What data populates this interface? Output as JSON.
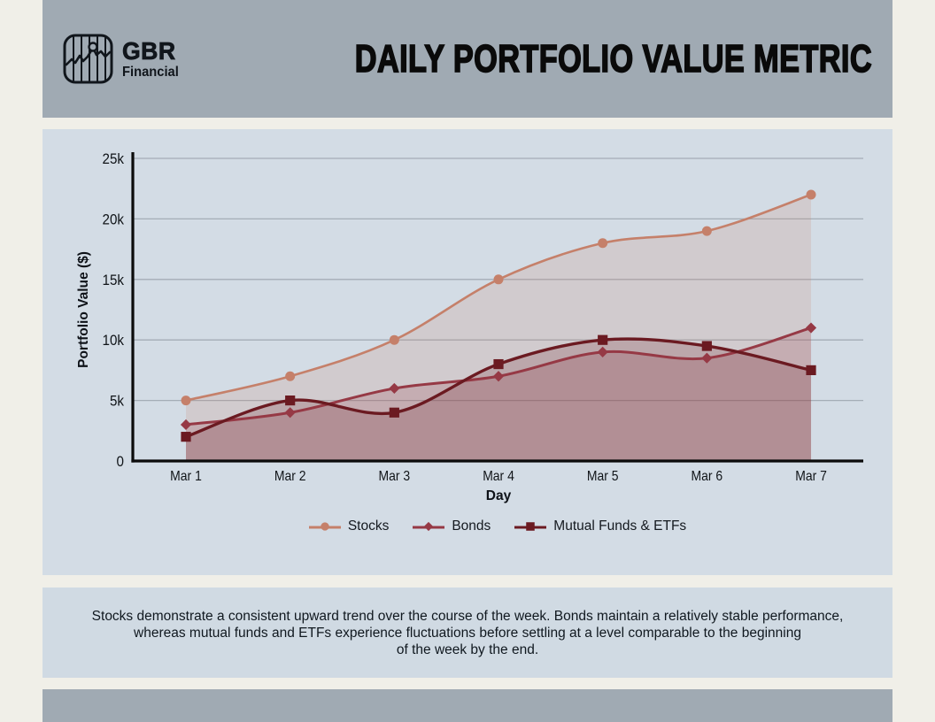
{
  "header": {
    "brand": {
      "name": "GBR",
      "sub": "Financial"
    },
    "title": "DAILY PORTFOLIO VALUE METRIC"
  },
  "chart_data": {
    "type": "area",
    "title": "",
    "xlabel": "Day",
    "ylabel": "Portfolio Value ($)",
    "categories": [
      "Mar 1",
      "Mar 2",
      "Mar 3",
      "Mar 4",
      "Mar 5",
      "Mar 6",
      "Mar 7"
    ],
    "ylim": [
      0,
      25000
    ],
    "yticks": [
      {
        "value": 0,
        "label": "0"
      },
      {
        "value": 5000,
        "label": "5k"
      },
      {
        "value": 10000,
        "label": "10k"
      },
      {
        "value": 15000,
        "label": "15k"
      },
      {
        "value": 20000,
        "label": "20k"
      },
      {
        "value": 25000,
        "label": "25k"
      }
    ],
    "grid": true,
    "legend_position": "bottom",
    "series": [
      {
        "name": "Stocks",
        "marker": "circle",
        "color": "#c5806a",
        "fill_opacity": 0.18,
        "line_width": 2.6,
        "values": [
          5000,
          7000,
          10000,
          15000,
          18000,
          19000,
          22000
        ]
      },
      {
        "name": "Bonds",
        "marker": "diamond",
        "color": "#963945",
        "fill_opacity": 0.2,
        "line_width": 3,
        "values": [
          3000,
          4000,
          6000,
          7000,
          9000,
          8500,
          11000
        ]
      },
      {
        "name": "Mutual Funds & ETFs",
        "marker": "square",
        "color": "#6b1a21",
        "fill_opacity": 0.2,
        "line_width": 3.4,
        "values": [
          2000,
          5000,
          4000,
          8000,
          10000,
          9500,
          7500
        ]
      }
    ]
  },
  "caption": {
    "lines": [
      "Stocks demonstrate a consistent upward trend over the course of the week. Bonds maintain a relatively stable performance,",
      "whereas mutual funds and ETFs experience fluctuations before settling at a level comparable to the beginning",
      "of the week by the end."
    ]
  },
  "colors": {
    "page_bg": "#f0efe8",
    "header_bg": "#a0aab3",
    "panel_bg": "#d3dce5",
    "caption_bg": "#d0dae3",
    "footer_bg": "#a0aab3",
    "grid": "#a4adb6",
    "axis": "#0b0b0b",
    "text": "#101418"
  }
}
